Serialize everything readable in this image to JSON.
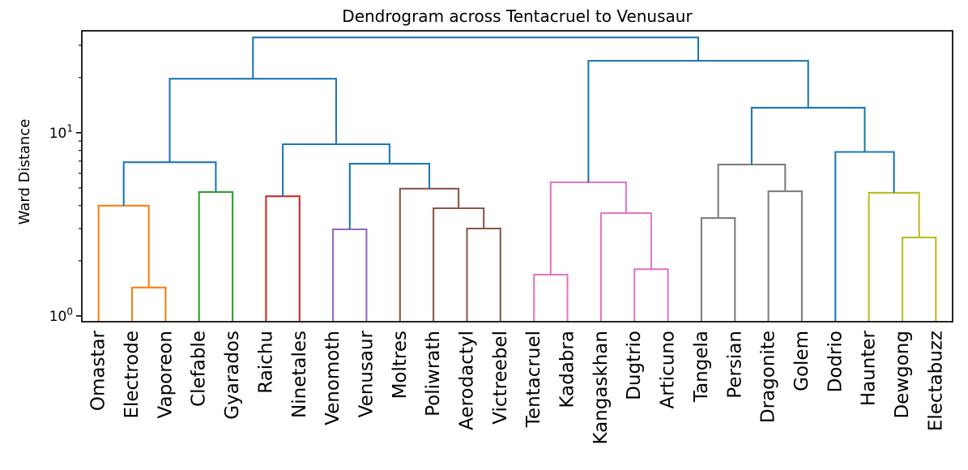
{
  "chart_data": {
    "type": "dendrogram",
    "title": "Dendrogram across Tentacruel to Venusaur",
    "ylabel": "Ward Distance",
    "xlabel": "",
    "yscale": "log",
    "ylim": [
      0.93,
      36
    ],
    "grid": false,
    "legend": "none",
    "colors": {
      "blue": "#1f77b4",
      "orange": "#ff7f0e",
      "green": "#2ca02c",
      "red": "#d62728",
      "purple": "#9467bd",
      "brown": "#8c564b",
      "pink": "#e377c2",
      "gray": "#7f7f7f",
      "olive": "#bcbd22"
    },
    "axis_color": "#000000",
    "yticks_major": [
      {
        "value": 1,
        "base": "10",
        "exp": "0"
      },
      {
        "value": 10,
        "base": "10",
        "exp": "1"
      }
    ],
    "yticks_minor": [
      2,
      3,
      4,
      5,
      6,
      7,
      8,
      9,
      20,
      30
    ],
    "leaves": [
      "Omastar",
      "Electrode",
      "Vaporeon",
      "Clefable",
      "Gyarados",
      "Raichu",
      "Ninetales",
      "Venomoth",
      "Venusaur",
      "Moltres",
      "Poliwrath",
      "Aerodactyl",
      "Victreebel",
      "Tentacruel",
      "Kadabra",
      "Kangaskhan",
      "Dugtrio",
      "Articuno",
      "Tangela",
      "Persian",
      "Dragonite",
      "Golem",
      "Dodrio",
      "Haunter",
      "Dewgong",
      "Electabuzz"
    ],
    "merges": [
      {
        "id": "m0",
        "a": "Electrode",
        "b": "Vaporeon",
        "height": 1.43,
        "color": "orange"
      },
      {
        "id": "m1",
        "a": "Omastar",
        "b": "m0",
        "height": 4.0,
        "color": "orange"
      },
      {
        "id": "m2",
        "a": "Clefable",
        "b": "Gyarados",
        "height": 4.75,
        "color": "green"
      },
      {
        "id": "m3",
        "a": "m1",
        "b": "m2",
        "height": 6.9,
        "color": "blue"
      },
      {
        "id": "m4",
        "a": "Raichu",
        "b": "Ninetales",
        "height": 4.5,
        "color": "red"
      },
      {
        "id": "m5",
        "a": "Venomoth",
        "b": "Venusaur",
        "height": 2.97,
        "color": "purple"
      },
      {
        "id": "m6",
        "a": "Aerodactyl",
        "b": "Victreebel",
        "height": 3.0,
        "color": "brown"
      },
      {
        "id": "m7",
        "a": "Poliwrath",
        "b": "m6",
        "height": 3.87,
        "color": "brown"
      },
      {
        "id": "m8",
        "a": "Moltres",
        "b": "m7",
        "height": 4.95,
        "color": "brown"
      },
      {
        "id": "m9",
        "a": "m5",
        "b": "m8",
        "height": 6.77,
        "color": "blue"
      },
      {
        "id": "m10",
        "a": "m4",
        "b": "m9",
        "height": 8.65,
        "color": "blue"
      },
      {
        "id": "m11",
        "a": "m3",
        "b": "m10",
        "height": 19.7,
        "color": "blue"
      },
      {
        "id": "m12",
        "a": "Tentacruel",
        "b": "Kadabra",
        "height": 1.68,
        "color": "pink"
      },
      {
        "id": "m13",
        "a": "Dugtrio",
        "b": "Articuno",
        "height": 1.8,
        "color": "pink"
      },
      {
        "id": "m14",
        "a": "Kangaskhan",
        "b": "m13",
        "height": 3.64,
        "color": "pink"
      },
      {
        "id": "m15",
        "a": "m12",
        "b": "m14",
        "height": 5.36,
        "color": "pink"
      },
      {
        "id": "m16",
        "a": "Tangela",
        "b": "Persian",
        "height": 3.42,
        "color": "gray"
      },
      {
        "id": "m17",
        "a": "Dragonite",
        "b": "Golem",
        "height": 4.79,
        "color": "gray"
      },
      {
        "id": "m18",
        "a": "m16",
        "b": "m17",
        "height": 6.7,
        "color": "gray"
      },
      {
        "id": "m19",
        "a": "Dewgong",
        "b": "Electabuzz",
        "height": 2.68,
        "color": "olive"
      },
      {
        "id": "m20",
        "a": "Haunter",
        "b": "m19",
        "height": 4.7,
        "color": "olive"
      },
      {
        "id": "m21",
        "a": "Dodrio",
        "b": "m20",
        "height": 7.85,
        "color": "blue"
      },
      {
        "id": "m22",
        "a": "m18",
        "b": "m21",
        "height": 13.7,
        "color": "blue"
      },
      {
        "id": "m23",
        "a": "m15",
        "b": "m22",
        "height": 24.7,
        "color": "blue"
      },
      {
        "id": "m24",
        "a": "m11",
        "b": "m23",
        "height": 33.1,
        "color": "blue"
      }
    ]
  }
}
